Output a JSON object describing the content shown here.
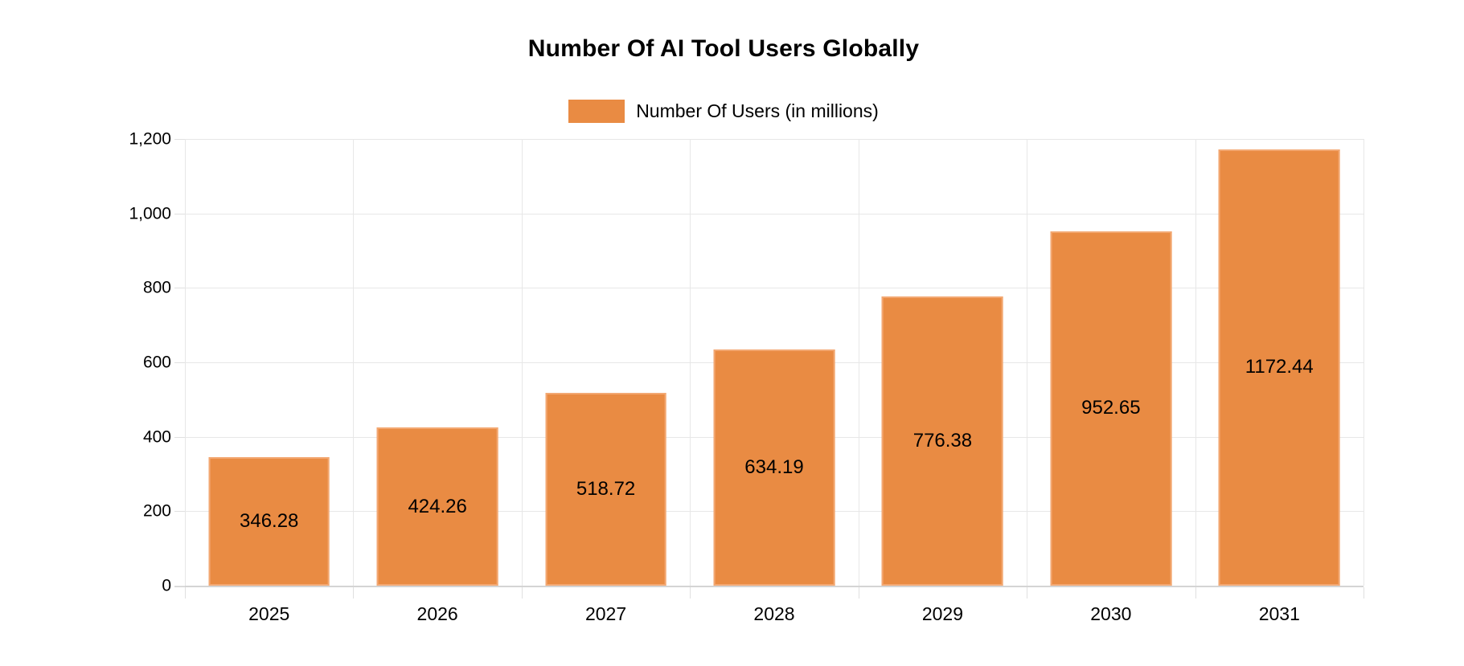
{
  "chart_data": {
    "type": "bar",
    "title": "Number Of AI Tool Users Globally",
    "legend": [
      "Number Of Users (in millions)"
    ],
    "legend_position": "top-center",
    "categories": [
      "2025",
      "2026",
      "2027",
      "2028",
      "2029",
      "2030",
      "2031"
    ],
    "values": [
      346.28,
      424.26,
      518.72,
      634.19,
      776.38,
      952.65,
      1172.44
    ],
    "data_labels": [
      "346.28",
      "424.26",
      "518.72",
      "634.19",
      "776.38",
      "952.65",
      "1172.44"
    ],
    "data_label_position": "inside-center",
    "xlabel": "",
    "ylabel": "",
    "ylim": [
      0,
      1200
    ],
    "y_tick_step": 200,
    "y_tick_labels": [
      "0",
      "200",
      "400",
      "600",
      "800",
      "1,000",
      "1,200"
    ],
    "grid": true,
    "colors": {
      "bar_fill": "#e98b43",
      "bar_stroke": "#f3a872",
      "gridline": "#e7e7e7",
      "axis_line": "#d4d4d4",
      "tick": "#e0e0e0",
      "label_text": "#000000"
    }
  }
}
